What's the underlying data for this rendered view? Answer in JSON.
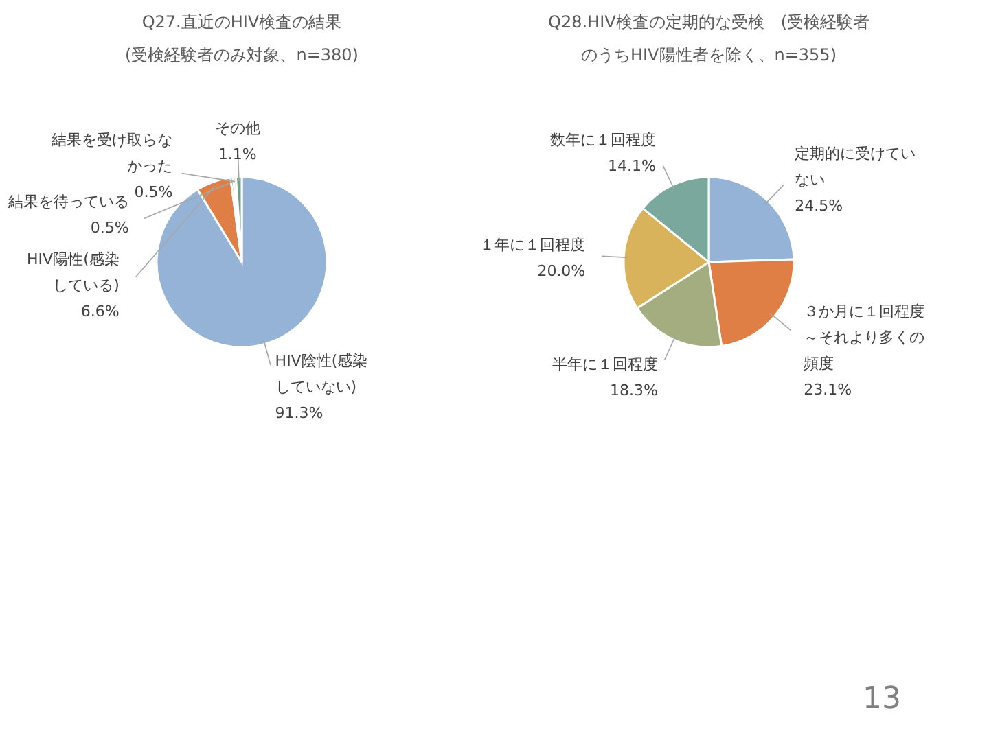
{
  "chart_data": [
    {
      "type": "pie",
      "title": "Q27.直近のHIV検査の結果",
      "subtitle": "(受検経験者のみ対象、n=380)",
      "categories": [
        "HIV陰性(感染していない)",
        "HIV陽性(感染している)",
        "結果を待っている",
        "結果を受け取らなかった",
        "その他"
      ],
      "values": [
        91.3,
        6.6,
        0.5,
        0.5,
        1.1
      ],
      "value_labels": [
        "91.3%",
        "6.6%",
        "0.5%",
        "0.5%",
        "1.1%"
      ],
      "colors": [
        "#95b3d7",
        "#e07f45",
        "#a5a5a5",
        "#f2d27a",
        "#6e9e86"
      ],
      "legend": false
    },
    {
      "type": "pie",
      "title": "Q28.HIV検査の定期的な受検　(受検経験者のうちHIV陽性者を除く、n=355)",
      "categories": [
        "定期的に受けていない",
        "３か月に１回程度～それより多くの頻度",
        "半年に１回程度",
        "１年に１回程度",
        "数年に１回程度"
      ],
      "values": [
        24.5,
        23.1,
        18.3,
        20.0,
        14.1
      ],
      "value_labels": [
        "24.5%",
        "23.1%",
        "18.3%",
        "20.0%",
        "14.1%"
      ],
      "colors": [
        "#95b3d7",
        "#e07f45",
        "#a4ad80",
        "#d9b25c",
        "#7aa89c"
      ],
      "legend": false,
      "annotations": [
        "13"
      ]
    }
  ]
}
